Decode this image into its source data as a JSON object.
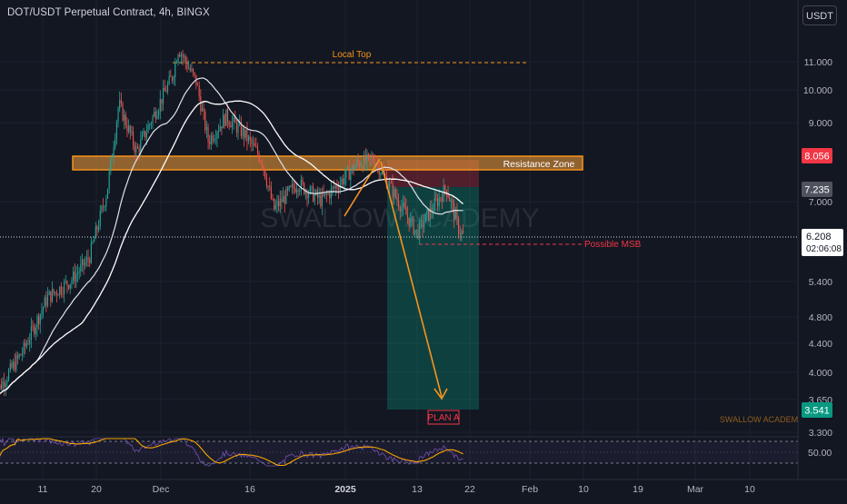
{
  "header": {
    "title": "DOT/USDT Perpetual Contract, 4h, BINGX",
    "currency_button": "USDT"
  },
  "annotations": {
    "local_top": "Local Top",
    "resistance_zone": "Resistance Zone",
    "possible_msb": "Possible MSB",
    "plan": "PLAN A",
    "watermark": "SWALLOW ACADEMY",
    "watermark_small": "SWALLOW ACADEMY"
  },
  "price_axis": {
    "ticks": [
      "11.000",
      "10.000",
      "9.000",
      "7.000",
      "5.400",
      "4.800",
      "4.400",
      "4.000",
      "3.650",
      "3.300"
    ],
    "badges": {
      "red": "8.056",
      "grey": "7.235",
      "current": "6.208",
      "countdown": "02:06:08",
      "green": "3.541"
    }
  },
  "time_axis": {
    "ticks": [
      "11",
      "20",
      "Dec",
      "16",
      "2025",
      "13",
      "22",
      "Feb",
      "10",
      "19",
      "Mar",
      "10"
    ]
  },
  "rsi_axis": {
    "tick": "50.00"
  },
  "colors": {
    "background": "#131722",
    "up": "#26a69a",
    "down": "#ef5350",
    "orange": "#f7931a",
    "red_badge": "#f23645",
    "green_badge": "#089981",
    "rsi_line": "#f7a600"
  },
  "chart_data": {
    "type": "candlestick",
    "symbol": "DOT/USDT Perpetual Contract",
    "interval": "4h",
    "exchange": "BINGX",
    "y_scale": "log",
    "ylim": [
      3.3,
      12.0
    ],
    "close_path": [
      {
        "t": "Nov 3",
        "v": 3.7
      },
      {
        "t": "Nov 8",
        "v": 4.3
      },
      {
        "t": "Nov 12",
        "v": 5.1
      },
      {
        "t": "Nov 16",
        "v": 5.4
      },
      {
        "t": "Nov 19",
        "v": 5.8
      },
      {
        "t": "Nov 22",
        "v": 7.2
      },
      {
        "t": "Nov 24",
        "v": 9.6
      },
      {
        "t": "Nov 27",
        "v": 8.2
      },
      {
        "t": "Nov 30",
        "v": 9.3
      },
      {
        "t": "Dec 3",
        "v": 10.5
      },
      {
        "t": "Dec 4",
        "v": 11.5
      },
      {
        "t": "Dec 7",
        "v": 10.3
      },
      {
        "t": "Dec 9",
        "v": 8.5
      },
      {
        "t": "Dec 12",
        "v": 9.2
      },
      {
        "t": "Dec 15",
        "v": 8.7
      },
      {
        "t": "Dec 18",
        "v": 8.0
      },
      {
        "t": "Dec 20",
        "v": 6.8
      },
      {
        "t": "Dec 24",
        "v": 7.4
      },
      {
        "t": "Dec 28",
        "v": 7.0
      },
      {
        "t": "Dec 31",
        "v": 7.4
      },
      {
        "t": "Jan 3",
        "v": 7.9
      },
      {
        "t": "Jan 6",
        "v": 8.0
      },
      {
        "t": "Jan 9",
        "v": 7.2
      },
      {
        "t": "Jan 13",
        "v": 6.3
      },
      {
        "t": "Jan 16",
        "v": 6.9
      },
      {
        "t": "Jan 18",
        "v": 7.3
      },
      {
        "t": "Jan 20",
        "v": 6.4
      },
      {
        "t": "Jan 21",
        "v": 6.208
      }
    ],
    "levels": {
      "local_top": 11.0,
      "resistance_zone": [
        7.75,
        8.1
      ],
      "possible_msb": 6.2,
      "target": 3.541,
      "current": 6.208
    },
    "indicator": "RSI",
    "rsi_reference": 50.0
  }
}
